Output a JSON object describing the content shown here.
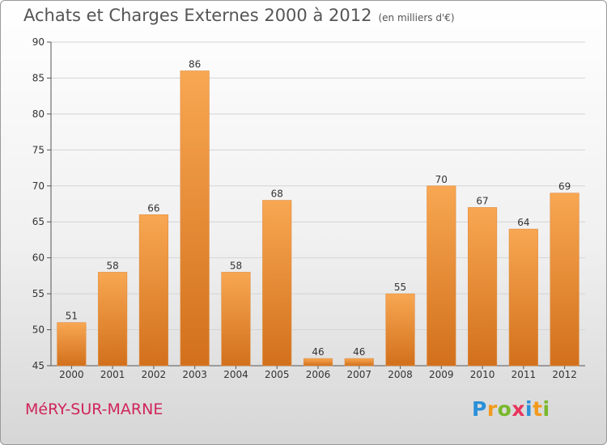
{
  "title": "Achats et Charges Externes 2000 à 2012",
  "unit": "(en milliers d'€)",
  "commune": "MéRY-SUR-MARNE",
  "brand": {
    "letters": [
      "P",
      "r",
      "o",
      "x",
      "i",
      "t",
      "i"
    ],
    "colors": [
      "#2a90d8",
      "#f29a1c",
      "#78b82a",
      "#e8355c",
      "#2a90d8",
      "#f29a1c",
      "#78b82a"
    ]
  },
  "colors": {
    "bar_top": "#f8a752",
    "bar_bottom": "#d2701c",
    "commune": "#d0245a"
  },
  "chart_data": {
    "type": "bar",
    "categories": [
      "2000",
      "2001",
      "2002",
      "2003",
      "2004",
      "2005",
      "2006",
      "2007",
      "2008",
      "2009",
      "2010",
      "2011",
      "2012"
    ],
    "values": [
      51,
      58,
      66,
      86,
      58,
      68,
      46,
      46,
      55,
      70,
      67,
      64,
      69
    ],
    "data_labels": [
      "51",
      "58",
      "66",
      "86",
      "58",
      "68",
      "46",
      "46",
      "55",
      "70",
      "67",
      "64",
      "69"
    ],
    "yticks": [
      "45",
      "50",
      "55",
      "60",
      "65",
      "70",
      "75",
      "80",
      "85",
      "90"
    ],
    "ylim": [
      45,
      90
    ],
    "grid": true
  }
}
